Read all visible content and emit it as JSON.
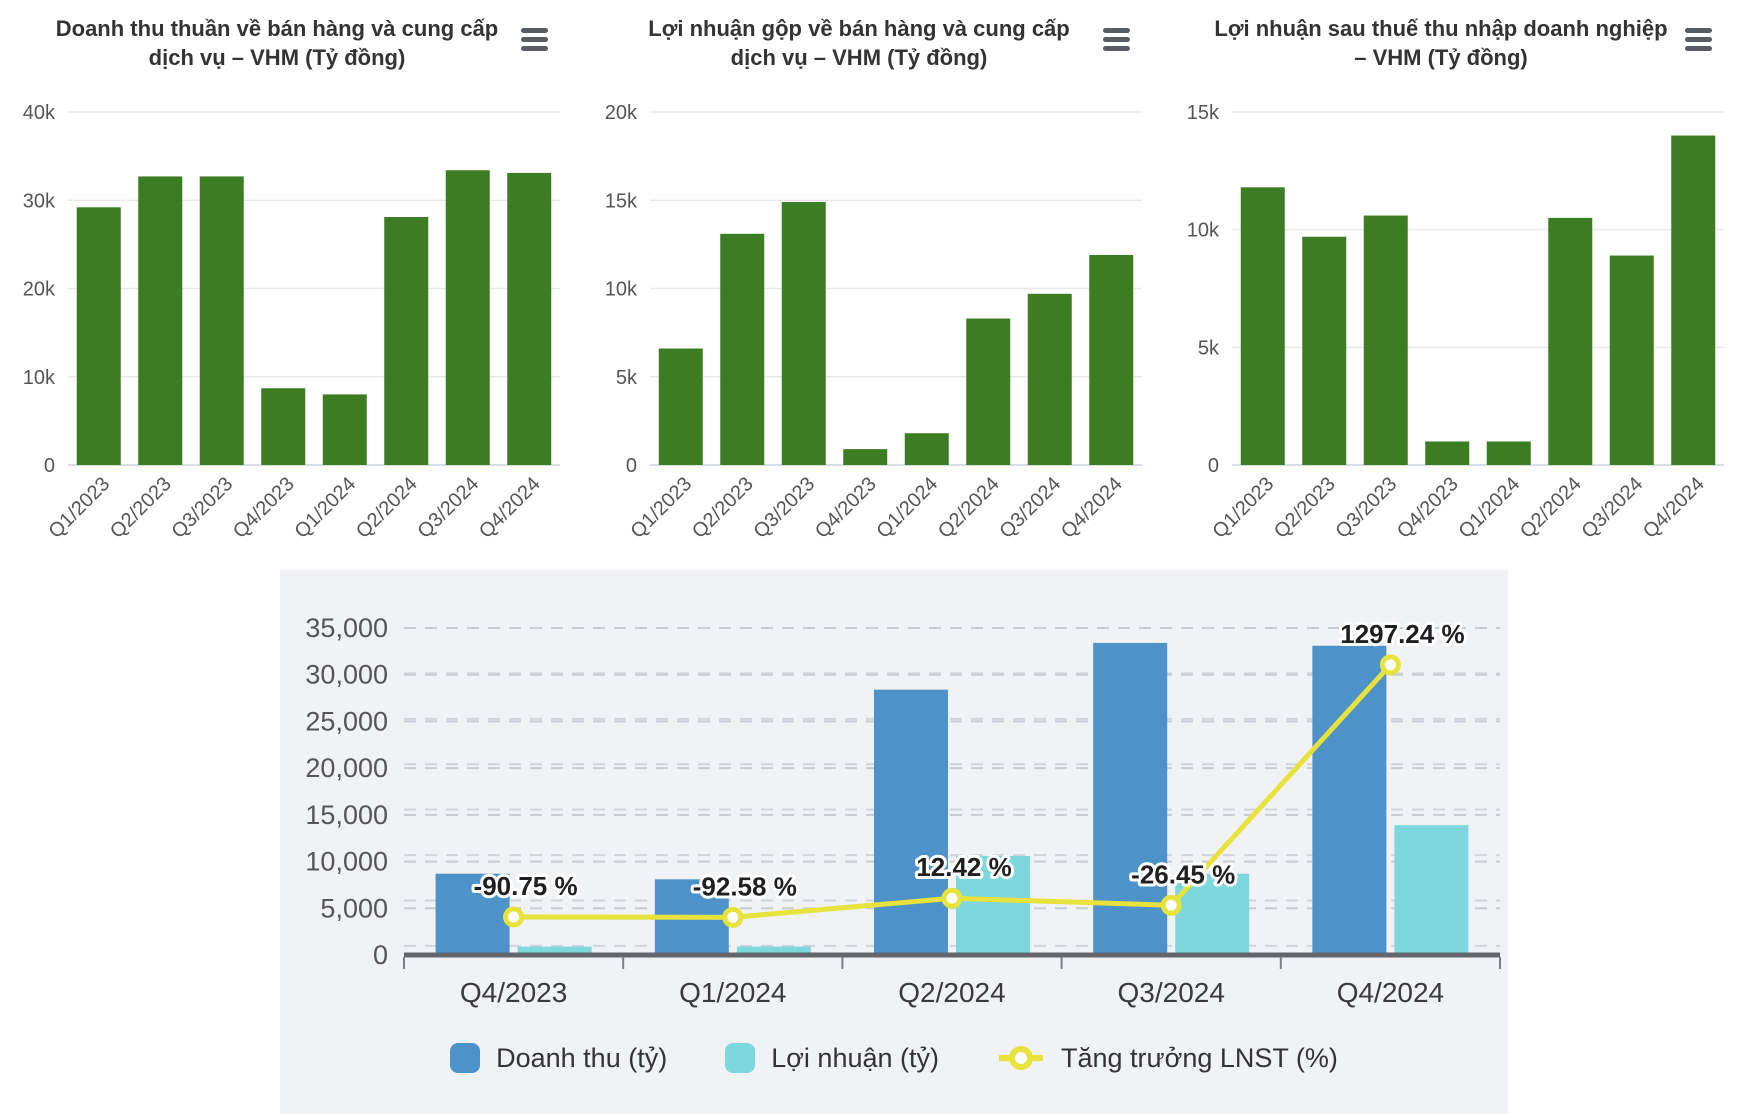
{
  "colors": {
    "green": "#3C7D23",
    "blue": "#4D93C9",
    "cyan": "#7DD8DD",
    "yellow": "#E7E23C",
    "panel_bg": "#F0F2F5",
    "grid_light": "#E8E8E8",
    "grid_zero": "#D8DEE5",
    "grid_dashed_major": "#C6CCD4",
    "grid_dashed_minor": "#CFD4DB",
    "baseline": "#63676D",
    "tick_text": "#555555",
    "title_text": "#333333",
    "data_label_text": "#1F1F1F"
  },
  "chart_data": [
    {
      "type": "bar",
      "title": "Doanh thu thuần về bán hàng và cung cấp dịch vụ – VHM (Tỷ đồng)",
      "categories": [
        "Q1/2023",
        "Q2/2023",
        "Q3/2023",
        "Q4/2023",
        "Q1/2024",
        "Q2/2024",
        "Q3/2024",
        "Q4/2024"
      ],
      "values": [
        29200,
        32700,
        32700,
        8700,
        8000,
        28100,
        33400,
        33100
      ],
      "ylim": [
        0,
        40000
      ],
      "yticks": [
        {
          "v": 0,
          "label": "0"
        },
        {
          "v": 10000,
          "label": "10k"
        },
        {
          "v": 20000,
          "label": "20k"
        },
        {
          "v": 30000,
          "label": "30k"
        },
        {
          "v": 40000,
          "label": "40k"
        }
      ],
      "bar_color": "#3C7D23",
      "grid": "solid",
      "legend": "none"
    },
    {
      "type": "bar",
      "title": "Lợi nhuận gộp về bán hàng và cung cấp dịch vụ – VHM (Tỷ đồng)",
      "categories": [
        "Q1/2023",
        "Q2/2023",
        "Q3/2023",
        "Q4/2023",
        "Q1/2024",
        "Q2/2024",
        "Q3/2024",
        "Q4/2024"
      ],
      "values": [
        6600,
        13100,
        14900,
        900,
        1800,
        8300,
        9700,
        11900
      ],
      "ylim": [
        0,
        20000
      ],
      "yticks": [
        {
          "v": 0,
          "label": "0"
        },
        {
          "v": 5000,
          "label": "5k"
        },
        {
          "v": 10000,
          "label": "10k"
        },
        {
          "v": 15000,
          "label": "15k"
        },
        {
          "v": 20000,
          "label": "20k"
        }
      ],
      "bar_color": "#3C7D23",
      "grid": "solid",
      "legend": "none"
    },
    {
      "type": "bar",
      "title": "Lợi nhuận sau thuế thu nhập doanh nghiệp – VHM (Tỷ đồng)",
      "categories": [
        "Q1/2023",
        "Q2/2023",
        "Q3/2023",
        "Q4/2023",
        "Q1/2024",
        "Q2/2024",
        "Q3/2024",
        "Q4/2024"
      ],
      "values": [
        11800,
        9700,
        10600,
        1000,
        1000,
        10500,
        8900,
        14000
      ],
      "ylim": [
        0,
        15000
      ],
      "yticks": [
        {
          "v": 0,
          "label": "0"
        },
        {
          "v": 5000,
          "label": "5k"
        },
        {
          "v": 10000,
          "label": "10k"
        },
        {
          "v": 15000,
          "label": "15k"
        }
      ],
      "bar_color": "#3C7D23",
      "grid": "solid",
      "legend": "none"
    },
    {
      "type": "bar+line",
      "categories": [
        "Q4/2023",
        "Q1/2024",
        "Q2/2024",
        "Q3/2024",
        "Q4/2024"
      ],
      "series": [
        {
          "name": "Doanh thu (tỷ)",
          "color": "#4D93C9",
          "values": [
            8700,
            8100,
            28400,
            33400,
            33100
          ]
        },
        {
          "name": "Lợi nhuận (tỷ)",
          "color": "#7DD8DD",
          "values": [
            900,
            900,
            10600,
            8700,
            13900
          ]
        }
      ],
      "line_series": {
        "name": "Tăng trưởng LNST (%)",
        "color": "#E7E23C",
        "values": [
          -90.75,
          -92.58,
          12.42,
          -26.45,
          1297.24
        ],
        "labels": [
          "-90.75 %",
          "-92.58 %",
          "12.42 %",
          "-26.45 %",
          "1297.24 %"
        ],
        "axis_range": [
          -300,
          1500
        ],
        "axis_tick_step": 250
      },
      "ylim": [
        0,
        35000
      ],
      "ytick_step": 5000,
      "grid": "dashed",
      "legend_position": "bottom"
    }
  ]
}
